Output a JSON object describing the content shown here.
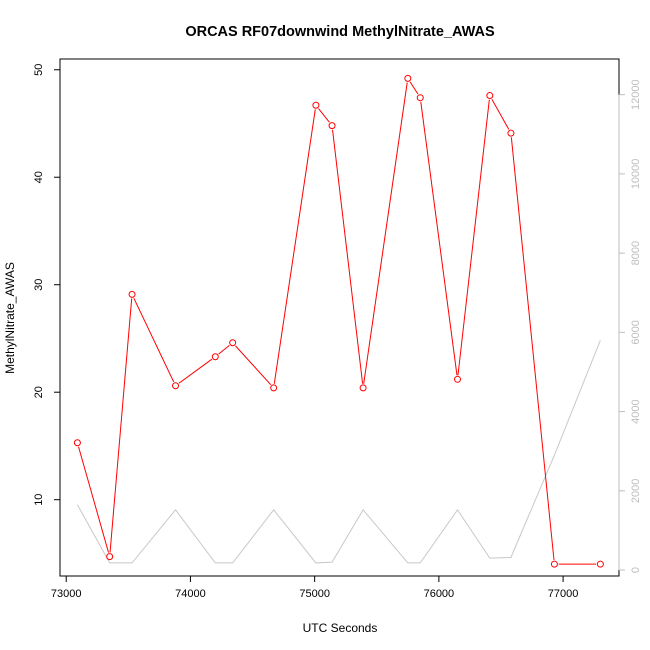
{
  "chart_data": {
    "type": "line",
    "title": "ORCAS RF07downwind MethylNitrate_AWAS",
    "xlabel": "UTC Seconds",
    "ylabel": "MethylNitrate_AWAS",
    "x_ticks": [
      73000,
      74000,
      75000,
      76000,
      77000
    ],
    "y_ticks": [
      10,
      20,
      30,
      40,
      50
    ],
    "y2_ticks": [
      0,
      2000,
      4000,
      6000,
      8000,
      10000,
      12000
    ],
    "xlim": [
      72950,
      77450
    ],
    "ylim": [
      2.9,
      51.0
    ],
    "y2lim": [
      -150,
      12900
    ],
    "grid": false,
    "series": [
      {
        "color": "#ff0000",
        "axis": "left",
        "markers": true,
        "x": [
          73090,
          73350,
          73530,
          73880,
          74200,
          74340,
          74670,
          75010,
          75140,
          75390,
          75750,
          75850,
          76150,
          76410,
          76580,
          76930,
          77300
        ],
        "y": [
          15.3,
          4.7,
          29.1,
          20.6,
          23.3,
          24.6,
          20.4,
          46.7,
          44.8,
          20.4,
          49.2,
          47.4,
          21.2,
          47.6,
          44.1,
          4.0,
          4.0
        ]
      },
      {
        "color": "#c8c8c8",
        "axis": "right",
        "markers": false,
        "x": [
          73090,
          73350,
          73530,
          73880,
          74200,
          74340,
          74670,
          75010,
          75140,
          75390,
          75750,
          75850,
          76150,
          76410,
          76580,
          76930,
          77300
        ],
        "y": [
          1650,
          180,
          180,
          1520,
          180,
          180,
          1520,
          180,
          200,
          1520,
          180,
          180,
          1520,
          300,
          320,
          2900,
          5800
        ]
      }
    ]
  }
}
